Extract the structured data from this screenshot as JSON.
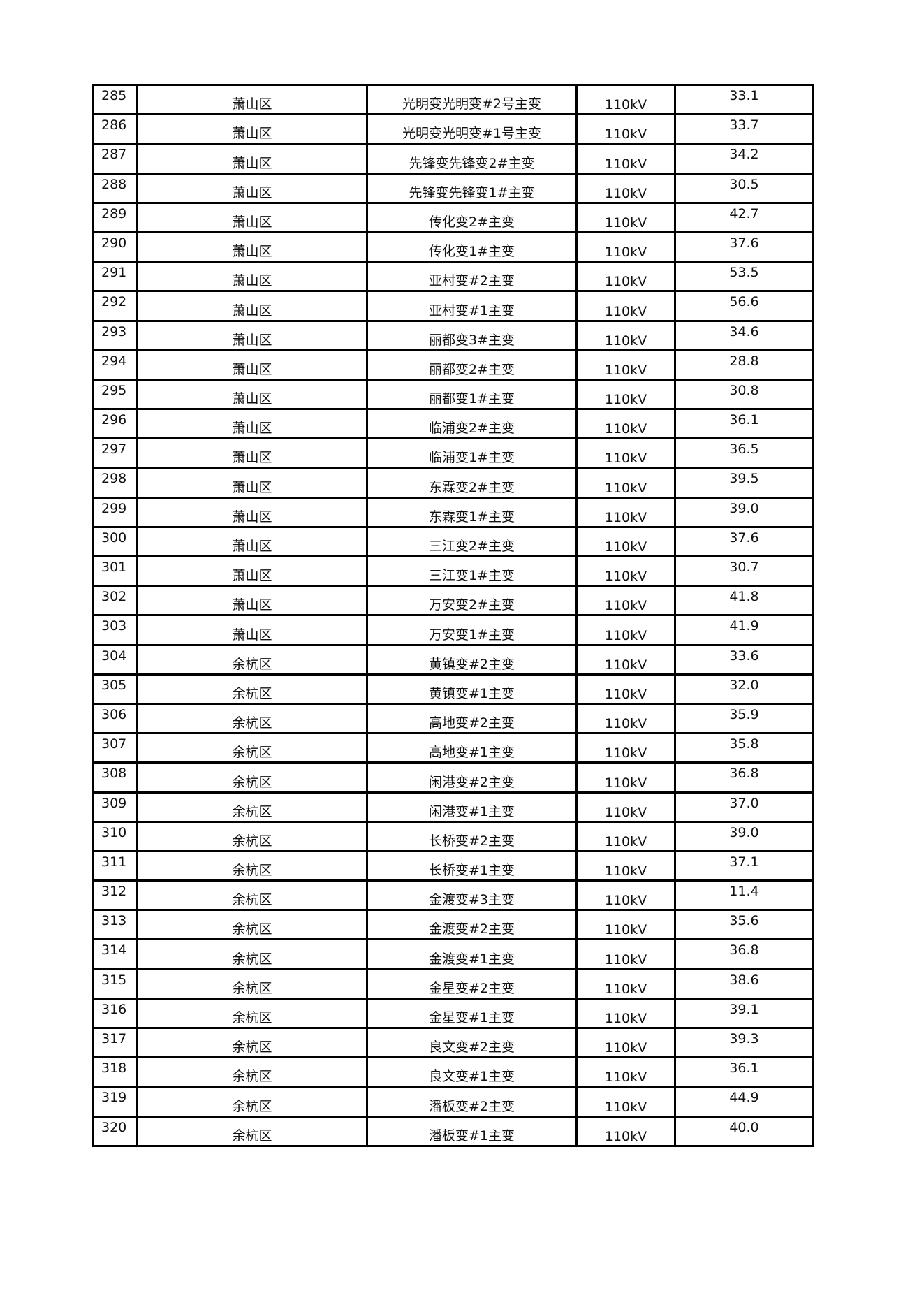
{
  "rows": [
    [
      "285",
      "萧山区",
      "光明变光明变#2号主变",
      "110kV",
      "33.1"
    ],
    [
      "286",
      "萧山区",
      "光明变光明变#1号主变",
      "110kV",
      "33.7"
    ],
    [
      "287",
      "萧山区",
      "先锋变先锋变2#主变",
      "110kV",
      "34.2"
    ],
    [
      "288",
      "萧山区",
      "先锋变先锋变1#主变",
      "110kV",
      "30.5"
    ],
    [
      "289",
      "萧山区",
      "传化变2#主变",
      "110kV",
      "42.7"
    ],
    [
      "290",
      "萧山区",
      "传化变1#主变",
      "110kV",
      "37.6"
    ],
    [
      "291",
      "萧山区",
      "亚村变#2主变",
      "110kV",
      "53.5"
    ],
    [
      "292",
      "萧山区",
      "亚村变#1主变",
      "110kV",
      "56.6"
    ],
    [
      "293",
      "萧山区",
      "丽都变3#主变",
      "110kV",
      "34.6"
    ],
    [
      "294",
      "萧山区",
      "丽都变2#主变",
      "110kV",
      "28.8"
    ],
    [
      "295",
      "萧山区",
      "丽都变1#主变",
      "110kV",
      "30.8"
    ],
    [
      "296",
      "萧山区",
      "临浦变2#主变",
      "110kV",
      "36.1"
    ],
    [
      "297",
      "萧山区",
      "临浦变1#主变",
      "110kV",
      "36.5"
    ],
    [
      "298",
      "萧山区",
      "东霖变2#主变",
      "110kV",
      "39.5"
    ],
    [
      "299",
      "萧山区",
      "东霖变1#主变",
      "110kV",
      "39.0"
    ],
    [
      "300",
      "萧山区",
      "三江变2#主变",
      "110kV",
      "37.6"
    ],
    [
      "301",
      "萧山区",
      "三江变1#主变",
      "110kV",
      "30.7"
    ],
    [
      "302",
      "萧山区",
      "万安变2#主变",
      "110kV",
      "41.8"
    ],
    [
      "303",
      "萧山区",
      "万安变1#主变",
      "110kV",
      "41.9"
    ],
    [
      "304",
      "余杭区",
      "黄镇变#2主变",
      "110kV",
      "33.6"
    ],
    [
      "305",
      "余杭区",
      "黄镇变#1主变",
      "110kV",
      "32.0"
    ],
    [
      "306",
      "余杭区",
      "高地变#2主变",
      "110kV",
      "35.9"
    ],
    [
      "307",
      "余杭区",
      "高地变#1主变",
      "110kV",
      "35.8"
    ],
    [
      "308",
      "余杭区",
      "闲港变#2主变",
      "110kV",
      "36.8"
    ],
    [
      "309",
      "余杭区",
      "闲港变#1主变",
      "110kV",
      "37.0"
    ],
    [
      "310",
      "余杭区",
      "长桥变#2主变",
      "110kV",
      "39.0"
    ],
    [
      "311",
      "余杭区",
      "长桥变#1主变",
      "110kV",
      "37.1"
    ],
    [
      "312",
      "余杭区",
      "金渡变#3主变",
      "110kV",
      "11.4"
    ],
    [
      "313",
      "余杭区",
      "金渡变#2主变",
      "110kV",
      "35.6"
    ],
    [
      "314",
      "余杭区",
      "金渡变#1主变",
      "110kV",
      "36.8"
    ],
    [
      "315",
      "余杭区",
      "金星变#2主变",
      "110kV",
      "38.6"
    ],
    [
      "316",
      "余杭区",
      "金星变#1主变",
      "110kV",
      "39.1"
    ],
    [
      "317",
      "余杭区",
      "良文变#2主变",
      "110kV",
      "39.3"
    ],
    [
      "318",
      "余杭区",
      "良文变#1主变",
      "110kV",
      "36.1"
    ],
    [
      "319",
      "余杭区",
      "潘板变#2主变",
      "110kV",
      "44.9"
    ],
    [
      "320",
      "余杭区",
      "潘板变#1主变",
      "110kV",
      "40.0"
    ]
  ]
}
